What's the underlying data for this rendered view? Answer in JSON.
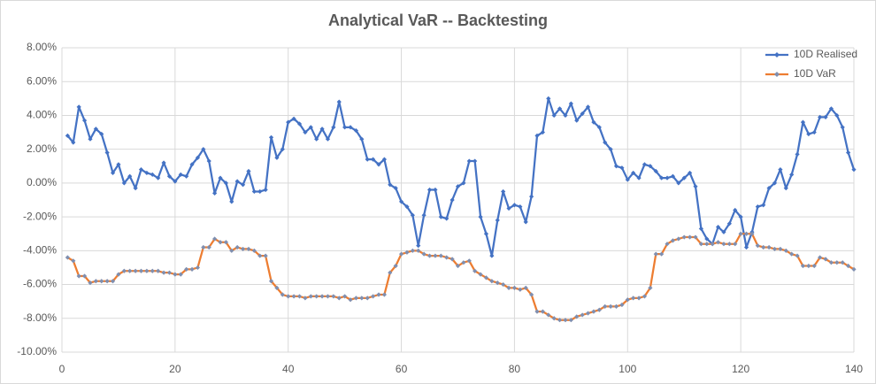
{
  "chart_data": {
    "type": "line",
    "title": "Analytical VaR -- Backtesting",
    "x": [
      1,
      2,
      3,
      4,
      5,
      6,
      7,
      8,
      9,
      10,
      11,
      12,
      13,
      14,
      15,
      16,
      17,
      18,
      19,
      20,
      21,
      22,
      23,
      24,
      25,
      26,
      27,
      28,
      29,
      30,
      31,
      32,
      33,
      34,
      35,
      36,
      37,
      38,
      39,
      40,
      41,
      42,
      43,
      44,
      45,
      46,
      47,
      48,
      49,
      50,
      51,
      52,
      53,
      54,
      55,
      56,
      57,
      58,
      59,
      60,
      61,
      62,
      63,
      64,
      65,
      66,
      67,
      68,
      69,
      70,
      71,
      72,
      73,
      74,
      75,
      76,
      77,
      78,
      79,
      80,
      81,
      82,
      83,
      84,
      85,
      86,
      87,
      88,
      89,
      90,
      91,
      92,
      93,
      94,
      95,
      96,
      97,
      98,
      99,
      100,
      101,
      102,
      103,
      104,
      105,
      106,
      107,
      108,
      109,
      110,
      111,
      112,
      113,
      114,
      115,
      116,
      117,
      118,
      119,
      120,
      121,
      122,
      123,
      124,
      125,
      126,
      127,
      128,
      129,
      130,
      131,
      132,
      133,
      134,
      135,
      136,
      137,
      138,
      139,
      140
    ],
    "series": [
      {
        "name": "10D Realised",
        "color": "#4472c4",
        "marker_color": "#4472c4",
        "values": [
          2.8,
          2.4,
          4.5,
          3.7,
          2.6,
          3.2,
          2.9,
          1.8,
          0.6,
          1.1,
          0.0,
          0.4,
          -0.3,
          0.8,
          0.6,
          0.5,
          0.3,
          1.2,
          0.4,
          0.1,
          0.5,
          0.4,
          1.1,
          1.5,
          2.0,
          1.3,
          -0.6,
          0.3,
          0.0,
          -1.1,
          0.1,
          -0.1,
          0.7,
          -0.5,
          -0.5,
          -0.4,
          2.7,
          1.5,
          2.0,
          3.6,
          3.8,
          3.5,
          3.0,
          3.3,
          2.6,
          3.2,
          2.6,
          3.3,
          4.8,
          3.3,
          3.3,
          3.1,
          2.6,
          1.4,
          1.4,
          1.1,
          1.4,
          -0.1,
          -0.3,
          -1.1,
          -1.4,
          -1.9,
          -3.7,
          -1.9,
          -0.4,
          -0.4,
          -2.0,
          -2.1,
          -1.0,
          -0.2,
          0.0,
          1.3,
          1.3,
          -2.0,
          -3.0,
          -4.3,
          -2.2,
          -0.5,
          -1.5,
          -1.3,
          -1.4,
          -2.3,
          -0.8,
          2.8,
          3.0,
          5.0,
          4.0,
          4.4,
          4.0,
          4.7,
          3.7,
          4.1,
          4.5,
          3.6,
          3.3,
          2.4,
          2.0,
          1.0,
          0.9,
          0.2,
          0.6,
          0.3,
          1.1,
          1.0,
          0.7,
          0.3,
          0.3,
          0.4,
          0.0,
          0.3,
          0.6,
          -0.2,
          -2.7,
          -3.3,
          -3.6,
          -2.6,
          -2.9,
          -2.4,
          -1.6,
          -2.0,
          -3.8,
          -2.9,
          -1.4,
          -1.3,
          -0.3,
          0.0,
          0.8,
          -0.3,
          0.5,
          1.7,
          3.6,
          2.9,
          3.0,
          3.9,
          3.9,
          4.4,
          4.0,
          3.3,
          1.8,
          0.8
        ]
      },
      {
        "name": "10D VaR",
        "color": "#ed7d31",
        "marker_color": "#7f8fb0",
        "values": [
          -4.4,
          -4.6,
          -5.5,
          -5.5,
          -5.9,
          -5.8,
          -5.8,
          -5.8,
          -5.8,
          -5.4,
          -5.2,
          -5.2,
          -5.2,
          -5.2,
          -5.2,
          -5.2,
          -5.2,
          -5.3,
          -5.3,
          -5.4,
          -5.4,
          -5.1,
          -5.1,
          -5.0,
          -3.8,
          -3.8,
          -3.3,
          -3.5,
          -3.5,
          -4.0,
          -3.8,
          -3.9,
          -3.9,
          -4.0,
          -4.3,
          -4.3,
          -5.8,
          -6.2,
          -6.6,
          -6.7,
          -6.7,
          -6.7,
          -6.8,
          -6.7,
          -6.7,
          -6.7,
          -6.7,
          -6.7,
          -6.8,
          -6.7,
          -6.9,
          -6.8,
          -6.8,
          -6.8,
          -6.7,
          -6.6,
          -6.6,
          -5.3,
          -4.9,
          -4.2,
          -4.1,
          -4.0,
          -4.0,
          -4.2,
          -4.3,
          -4.3,
          -4.3,
          -4.4,
          -4.5,
          -4.9,
          -4.7,
          -4.6,
          -5.2,
          -5.4,
          -5.6,
          -5.8,
          -5.9,
          -6.0,
          -6.2,
          -6.2,
          -6.3,
          -6.2,
          -6.6,
          -7.6,
          -7.6,
          -7.8,
          -8.0,
          -8.1,
          -8.1,
          -8.1,
          -7.9,
          -7.8,
          -7.7,
          -7.6,
          -7.5,
          -7.3,
          -7.3,
          -7.3,
          -7.2,
          -6.9,
          -6.8,
          -6.8,
          -6.7,
          -6.2,
          -4.2,
          -4.2,
          -3.6,
          -3.4,
          -3.3,
          -3.2,
          -3.2,
          -3.2,
          -3.6,
          -3.6,
          -3.6,
          -3.5,
          -3.6,
          -3.6,
          -3.6,
          -3.0,
          -3.0,
          -3.0,
          -3.7,
          -3.8,
          -3.8,
          -3.9,
          -3.9,
          -4.0,
          -4.2,
          -4.3,
          -4.9,
          -4.9,
          -4.9,
          -4.4,
          -4.5,
          -4.7,
          -4.7,
          -4.7,
          -4.9,
          -5.1
        ]
      }
    ],
    "xlim": [
      0,
      140
    ],
    "xticks": [
      0,
      20,
      40,
      60,
      80,
      100,
      120,
      140
    ],
    "ylim": [
      -10,
      8
    ],
    "yticks": [
      {
        "value": -10,
        "label": "-10.00%"
      },
      {
        "value": -8,
        "label": "-8.00%"
      },
      {
        "value": -6,
        "label": "-6.00%"
      },
      {
        "value": -4,
        "label": "-4.00%"
      },
      {
        "value": -2,
        "label": "-2.00%"
      },
      {
        "value": 0,
        "label": "0.00%"
      },
      {
        "value": 2,
        "label": "2.00%"
      },
      {
        "value": 4,
        "label": "4.00%"
      },
      {
        "value": 6,
        "label": "6.00%"
      },
      {
        "value": 8,
        "label": "8.00%"
      }
    ],
    "grid": true,
    "legend": "top-right"
  }
}
